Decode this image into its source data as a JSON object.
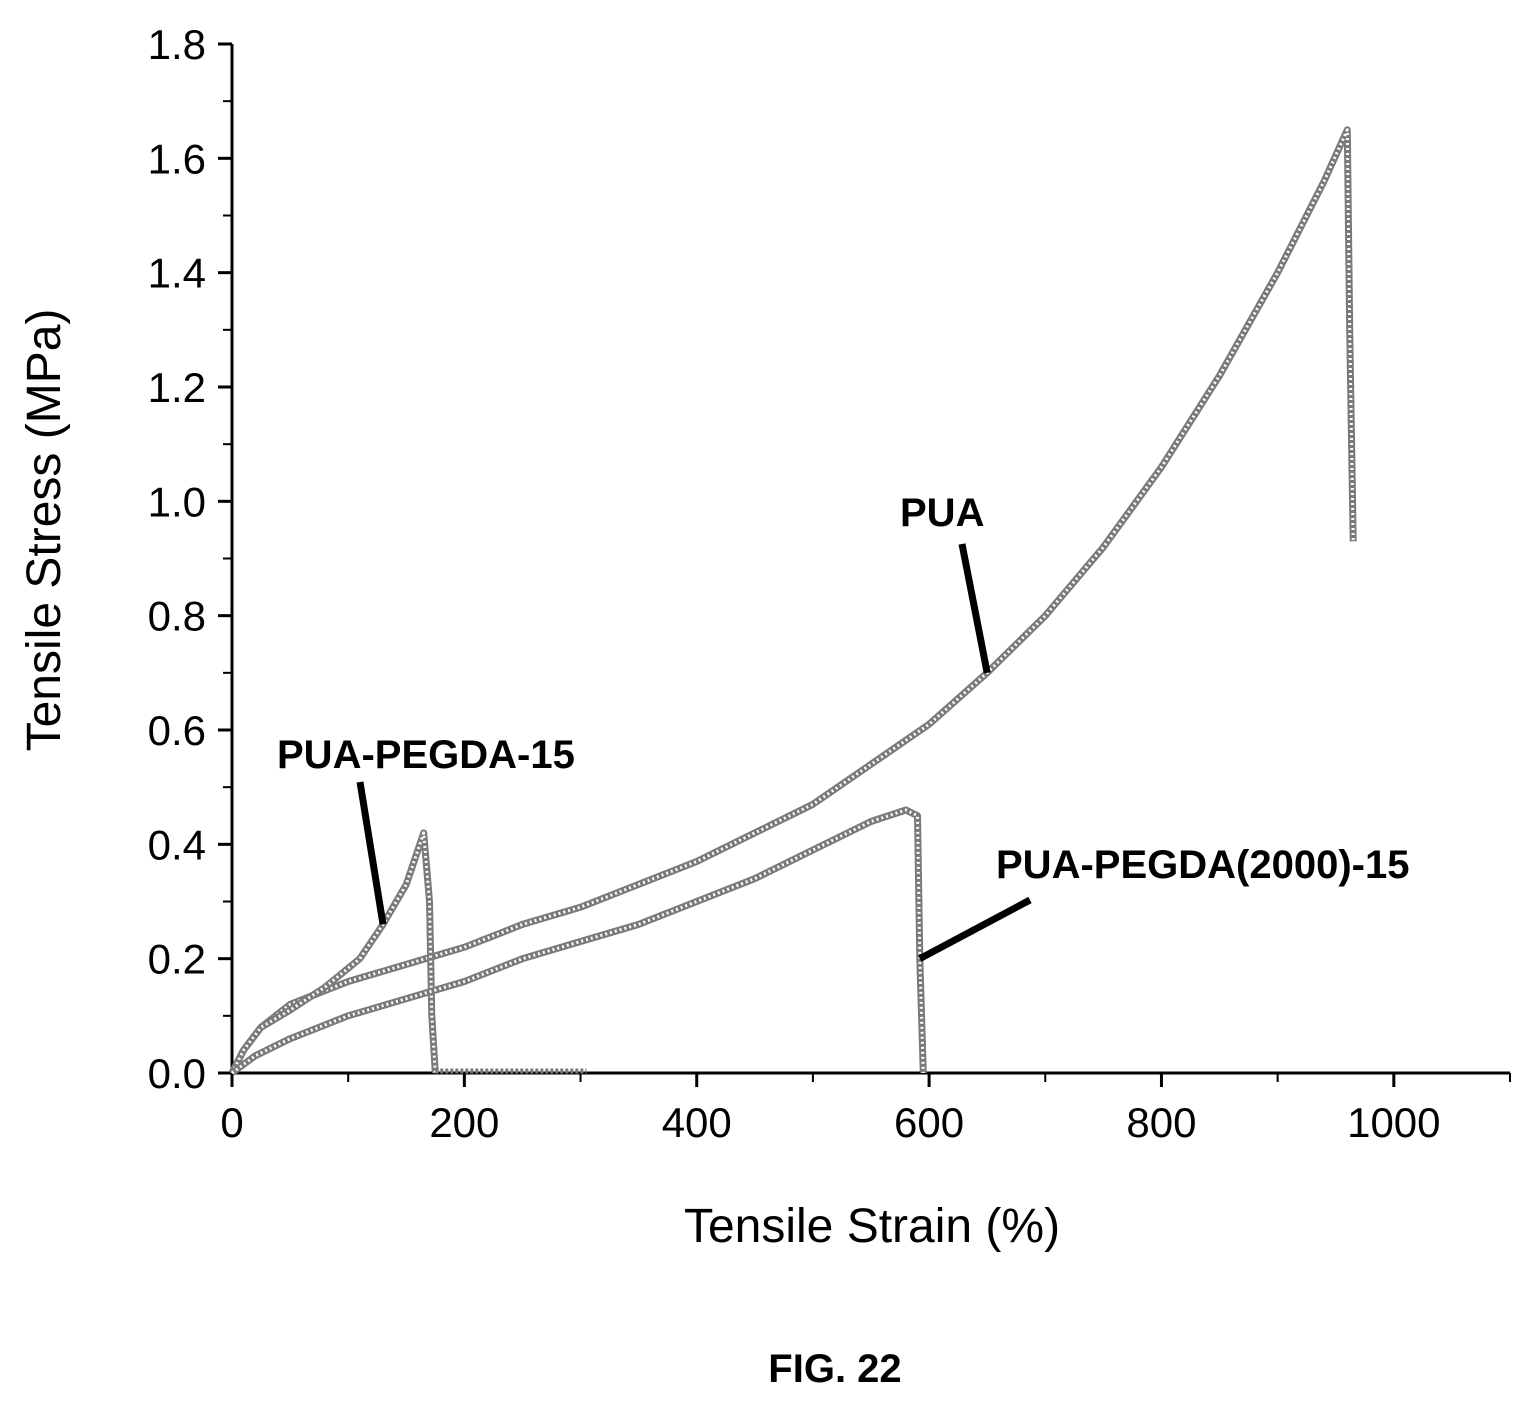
{
  "chart_data": {
    "type": "line",
    "xlabel": "Tensile Strain (%)",
    "ylabel": "Tensile Stress (MPa)",
    "xlim": [
      0,
      1100
    ],
    "ylim": [
      0,
      1.8
    ],
    "xticks": [
      "0",
      "200",
      "400",
      "600",
      "800",
      "1000"
    ],
    "xtick_values": [
      0,
      200,
      400,
      600,
      800,
      1000
    ],
    "yticks": [
      "0.0",
      "0.2",
      "0.4",
      "0.6",
      "0.8",
      "1.0",
      "1.2",
      "1.4",
      "1.6",
      "1.8"
    ],
    "ytick_values": [
      0,
      0.2,
      0.4,
      0.6,
      0.8,
      1.0,
      1.2,
      1.4,
      1.6,
      1.8
    ],
    "grid": false,
    "legend": "none",
    "series": [
      {
        "name": "PUA",
        "x": [
          0,
          10,
          25,
          50,
          100,
          150,
          200,
          250,
          300,
          350,
          400,
          450,
          500,
          550,
          600,
          650,
          700,
          750,
          800,
          850,
          900,
          940,
          960,
          962,
          965
        ],
        "y": [
          0,
          0.04,
          0.08,
          0.12,
          0.16,
          0.19,
          0.22,
          0.26,
          0.29,
          0.33,
          0.37,
          0.42,
          0.47,
          0.54,
          0.61,
          0.7,
          0.8,
          0.92,
          1.06,
          1.22,
          1.4,
          1.56,
          1.65,
          1.3,
          0.93
        ]
      },
      {
        "name": "PUA-PEGDA-15",
        "x": [
          0,
          10,
          25,
          50,
          80,
          110,
          130,
          150,
          165,
          170,
          172,
          175
        ],
        "y": [
          0,
          0.04,
          0.08,
          0.11,
          0.15,
          0.2,
          0.26,
          0.33,
          0.42,
          0.3,
          0.1,
          0
        ]
      },
      {
        "name": "PUA-PEGDA(2000)-15",
        "x": [
          0,
          20,
          50,
          100,
          150,
          200,
          250,
          300,
          350,
          400,
          450,
          500,
          550,
          580,
          590,
          592,
          595
        ],
        "y": [
          0,
          0.03,
          0.06,
          0.1,
          0.13,
          0.16,
          0.2,
          0.23,
          0.26,
          0.3,
          0.34,
          0.39,
          0.44,
          0.46,
          0.45,
          0.2,
          0
        ]
      }
    ],
    "annotations": [
      {
        "text": "PUA",
        "series": 0
      },
      {
        "text": "PUA-PEGDA-15",
        "series": 1
      },
      {
        "text": "PUA-PEGDA(2000)-15",
        "series": 2
      }
    ]
  },
  "caption": "FIG. 22"
}
